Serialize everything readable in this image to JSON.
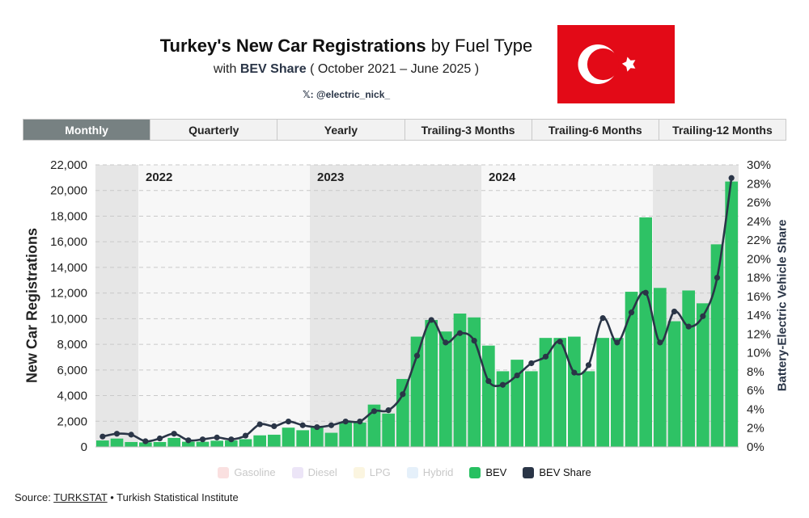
{
  "header": {
    "title_bold": "Turkey's New Car Registrations",
    "title_rest": " by Fuel Type",
    "subtitle_pre": "with ",
    "subtitle_bold": "BEV Share",
    "subtitle_post": " ( October 2021 – June 2025 )",
    "handle": "𝕏: @electric_nick_"
  },
  "tabs": [
    {
      "label": "Monthly",
      "active": true
    },
    {
      "label": "Quarterly",
      "active": false
    },
    {
      "label": "Yearly",
      "active": false
    },
    {
      "label": "Trailing-3 Months",
      "active": false
    },
    {
      "label": "Trailing-6 Months",
      "active": false
    },
    {
      "label": "Trailing-12 Months",
      "active": false
    }
  ],
  "legend": [
    {
      "label": "Gasoline",
      "color": "#f6c6c6",
      "active": false
    },
    {
      "label": "Diesel",
      "color": "#ddd0f0",
      "active": false
    },
    {
      "label": "LPG",
      "color": "#f8ecc6",
      "active": false
    },
    {
      "label": "Hybrid",
      "color": "#cfe3f5",
      "active": false
    },
    {
      "label": "BEV",
      "color": "#27c061",
      "active": true
    },
    {
      "label": "BEV Share",
      "color": "#2a3547",
      "active": true
    }
  ],
  "source": {
    "prefix": "Source: ",
    "link": "TURKSTAT",
    "suffix": " • Turkish Statistical Institute"
  },
  "colors": {
    "bev": "#2ec265",
    "line": "#2a3547",
    "flag_red": "#e30a17"
  },
  "chart_data": {
    "type": "bar",
    "title": "Turkey's New Car Registrations by Fuel Type",
    "ylabel": "New Car Registrations",
    "y2label": "Battery-Electric Vehicle Share",
    "ylim": [
      0,
      22000
    ],
    "y2lim": [
      0,
      30
    ],
    "yticks": [
      "0",
      "2,000",
      "4,000",
      "6,000",
      "8,000",
      "10,000",
      "12,000",
      "14,000",
      "16,000",
      "18,000",
      "20,000",
      "22,000"
    ],
    "y2ticks": [
      "0%",
      "2%",
      "4%",
      "6%",
      "8%",
      "10%",
      "12%",
      "14%",
      "16%",
      "18%",
      "20%",
      "22%",
      "24%",
      "26%",
      "28%",
      "30%"
    ],
    "grid": true,
    "legend_position": "bottom",
    "year_labels": [
      {
        "label": "2022",
        "start_index": 3
      },
      {
        "label": "2023",
        "start_index": 15
      },
      {
        "label": "2024",
        "start_index": 27
      }
    ],
    "year_bands": [
      {
        "start_index": 0,
        "end_index": 3
      },
      {
        "start_index": 15,
        "end_index": 27
      },
      {
        "start_index": 39,
        "end_index": 45
      }
    ],
    "x": [
      "2021-10",
      "2021-11",
      "2021-12",
      "2022-01",
      "2022-02",
      "2022-03",
      "2022-04",
      "2022-05",
      "2022-06",
      "2022-07",
      "2022-08",
      "2022-09",
      "2022-10",
      "2022-11",
      "2022-12",
      "2023-01",
      "2023-02",
      "2023-03",
      "2023-04",
      "2023-05",
      "2023-06",
      "2023-07",
      "2023-08",
      "2023-09",
      "2023-10",
      "2023-11",
      "2023-12",
      "2024-01",
      "2024-02",
      "2024-03",
      "2024-04",
      "2024-05",
      "2024-06",
      "2024-07",
      "2024-08",
      "2024-09",
      "2024-10",
      "2024-11",
      "2024-12",
      "2025-01",
      "2025-02",
      "2025-03",
      "2025-04",
      "2025-05",
      "2025-06"
    ],
    "series": [
      {
        "name": "BEV",
        "type": "bar",
        "axis": "left",
        "values": [
          500,
          650,
          380,
          350,
          380,
          700,
          400,
          400,
          480,
          500,
          600,
          900,
          950,
          1500,
          1300,
          1600,
          1100,
          1950,
          1900,
          3300,
          2600,
          5300,
          8600,
          9900,
          9000,
          10400,
          10100,
          7900,
          5900,
          6800,
          5900,
          8500,
          8500,
          8600,
          5900,
          8500,
          8500,
          12100,
          17900,
          12400,
          9800,
          12200,
          11200,
          15800,
          20700
        ]
      },
      {
        "name": "BEV Share",
        "type": "line",
        "axis": "right",
        "values": [
          1.1,
          1.4,
          1.3,
          0.6,
          0.9,
          1.4,
          0.7,
          0.8,
          1.0,
          0.8,
          1.2,
          2.4,
          2.2,
          2.7,
          2.3,
          2.1,
          2.3,
          2.7,
          2.7,
          3.8,
          3.9,
          5.6,
          9.7,
          13.5,
          11.1,
          12.1,
          11.3,
          7.0,
          6.6,
          7.6,
          8.9,
          9.6,
          11.2,
          7.9,
          8.7,
          13.7,
          11.1,
          14.3,
          16.4,
          11.1,
          14.4,
          12.8,
          13.9,
          18.0,
          28.6
        ]
      }
    ]
  }
}
